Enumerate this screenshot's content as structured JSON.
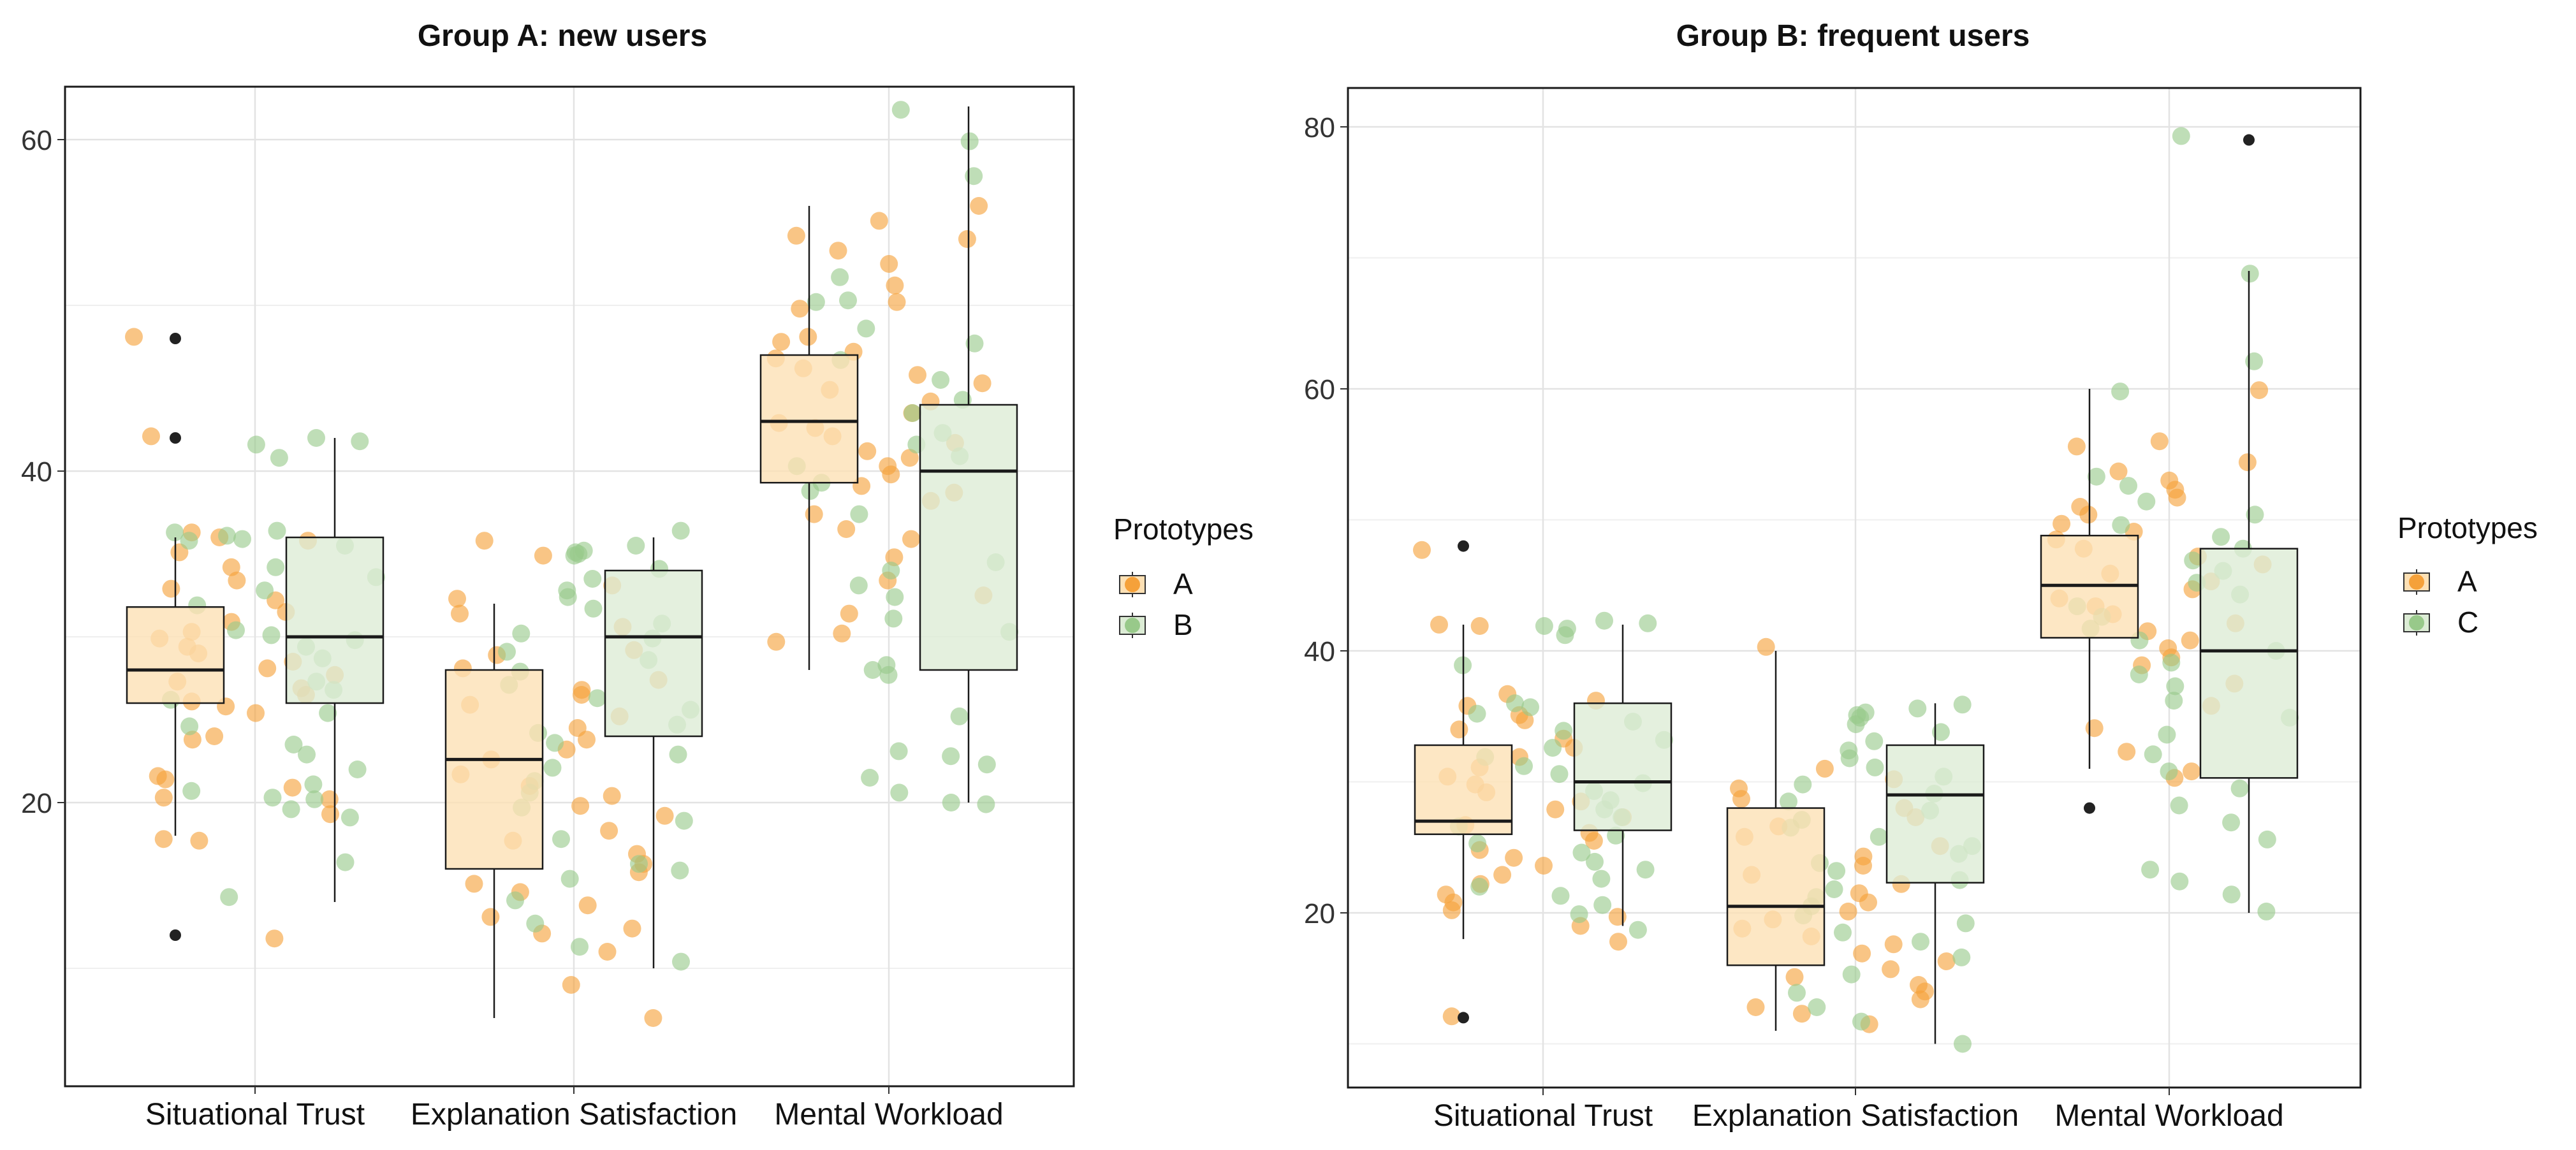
{
  "figure": {
    "panels": [
      {
        "title": "Group A: new users",
        "legend": {
          "title": "Prototypes",
          "items": [
            {
              "label": "A",
              "color": "#f5a13a",
              "fill": "#fde0b4"
            },
            {
              "label": "B",
              "color": "#98c98a",
              "fill": "#dcecd5"
            }
          ]
        }
      },
      {
        "title": "Group B: frequent users",
        "legend": {
          "title": "Prototypes",
          "items": [
            {
              "label": "A",
              "color": "#f5a13a",
              "fill": "#fde0b4"
            },
            {
              "label": "C",
              "color": "#98c98a",
              "fill": "#dcecd5"
            }
          ]
        }
      }
    ]
  },
  "chart_data": [
    {
      "type": "box",
      "title": "Group A: new users",
      "xlabel": "",
      "ylabel": "",
      "categories": [
        "Situational Trust",
        "Explanation Satisfaction",
        "Mental Workload"
      ],
      "ylim": [
        6,
        66
      ],
      "yticks": [
        20,
        40,
        60
      ],
      "grid": true,
      "legend_position": "right",
      "series": [
        {
          "name": "A",
          "boxes": [
            {
              "q1": 26,
              "median": 28,
              "q3": 31.8,
              "whisker_low": 18,
              "whisker_high": 36,
              "outliers": [
                48,
                42,
                12
              ]
            },
            {
              "q1": 16,
              "median": 22.6,
              "q3": 28,
              "whisker_low": 7,
              "whisker_high": 32,
              "outliers": []
            },
            {
              "q1": 39.3,
              "median": 43,
              "q3": 47,
              "whisker_low": 28,
              "whisker_high": 56,
              "outliers": []
            }
          ],
          "points": [
            [
              48.1,
              42.1,
              36.3,
              36.0,
              35.8,
              35.1,
              34.2,
              33.4,
              32.9,
              32.2,
              31.5,
              30.9,
              30.3,
              29.9,
              29.4,
              29.0,
              28.5,
              28.1,
              27.7,
              27.3,
              26.9,
              26.5,
              26.1,
              25.8,
              25.4,
              24.0,
              23.8,
              21.6,
              21.4,
              20.3,
              20.2,
              20.9,
              19.3,
              17.8,
              17.7,
              11.8
            ],
            [
              35.8,
              34.9,
              33.1,
              32.3,
              31.4,
              30.6,
              29.2,
              28.9,
              28.1,
              27.4,
              26.8,
              26.5,
              25.9,
              25.2,
              24.5,
              23.8,
              23.2,
              22.6,
              21.7,
              21.0,
              20.4,
              19.8,
              19.2,
              18.3,
              17.7,
              16.9,
              16.3,
              15.8,
              15.1,
              14.6,
              13.8,
              13.1,
              12.4,
              12.1,
              11.0,
              9.0,
              7.0
            ],
            [
              56.0,
              55.1,
              54.2,
              54.0,
              53.3,
              52.5,
              51.2,
              50.2,
              49.8,
              48.1,
              47.8,
              47.2,
              46.8,
              46.2,
              45.8,
              45.3,
              44.9,
              44.2,
              43.5,
              42.9,
              42.6,
              42.1,
              41.7,
              41.2,
              40.8,
              40.3,
              39.8,
              39.1,
              38.7,
              38.2,
              37.4,
              36.5,
              35.9,
              34.8,
              33.4,
              32.5,
              31.4,
              30.2,
              29.7
            ]
          ]
        },
        {
          "name": "B",
          "boxes": [
            {
              "q1": 26,
              "median": 30,
              "q3": 36,
              "whisker_low": 14,
              "whisker_high": 42,
              "outliers": []
            },
            {
              "q1": 24,
              "median": 30,
              "q3": 34,
              "whisker_low": 10,
              "whisker_high": 36,
              "outliers": []
            },
            {
              "q1": 28,
              "median": 40,
              "q3": 44,
              "whisker_low": 20,
              "whisker_high": 62,
              "outliers": []
            }
          ],
          "points": [
            [
              42.0,
              41.8,
              41.6,
              40.8,
              36.4,
              36.3,
              36.1,
              35.9,
              35.8,
              35.5,
              34.2,
              33.6,
              32.8,
              31.9,
              30.4,
              30.1,
              29.8,
              29.4,
              28.7,
              27.3,
              26.8,
              26.2,
              25.4,
              24.6,
              23.5,
              22.9,
              22.0,
              21.1,
              20.7,
              20.3,
              20.2,
              19.6,
              19.1,
              16.4,
              14.3
            ],
            [
              36.4,
              35.5,
              35.2,
              35.1,
              35.0,
              34.9,
              34.1,
              33.5,
              32.8,
              32.4,
              31.7,
              30.8,
              30.2,
              29.9,
              29.1,
              28.6,
              27.9,
              27.1,
              26.3,
              25.6,
              24.7,
              24.2,
              23.6,
              22.9,
              22.1,
              21.3,
              20.6,
              19.7,
              18.9,
              17.8,
              16.3,
              15.9,
              15.4,
              14.1,
              12.7,
              11.3,
              10.4
            ],
            [
              61.8,
              59.9,
              57.8,
              51.7,
              50.2,
              50.3,
              48.6,
              47.7,
              46.7,
              45.5,
              44.3,
              43.5,
              42.3,
              41.6,
              40.9,
              40.3,
              39.3,
              38.8,
              37.4,
              34.5,
              34.0,
              33.1,
              32.4,
              31.1,
              30.3,
              28.3,
              28.0,
              27.7,
              25.2,
              23.1,
              22.8,
              22.3,
              21.5,
              20.6,
              20.0,
              19.9
            ]
          ]
        }
      ]
    },
    {
      "type": "box",
      "title": "Group B: frequent users",
      "xlabel": "",
      "ylabel": "",
      "categories": [
        "Situational Trust",
        "Explanation Satisfaction",
        "Mental Workload"
      ],
      "ylim": [
        7,
        83
      ],
      "yticks": [
        20,
        40,
        60,
        80
      ],
      "grid": true,
      "legend_position": "right",
      "series": [
        {
          "name": "A",
          "boxes": [
            {
              "q1": 26,
              "median": 27,
              "q3": 32.8,
              "whisker_low": 18,
              "whisker_high": 42,
              "outliers": [
                48,
                12
              ]
            },
            {
              "q1": 16,
              "median": 20.5,
              "q3": 28,
              "whisker_low": 11,
              "whisker_high": 40,
              "outliers": []
            },
            {
              "q1": 41,
              "median": 45,
              "q3": 48.8,
              "whisker_low": 31,
              "whisker_high": 60,
              "outliers": [
                28
              ]
            }
          ],
          "points": [
            [
              47.7,
              42.0,
              41.9,
              36.7,
              36.2,
              35.8,
              35.1,
              34.7,
              34.0,
              33.3,
              32.6,
              31.9,
              31.1,
              30.4,
              29.8,
              29.2,
              28.5,
              27.9,
              27.3,
              26.7,
              26.1,
              25.5,
              24.8,
              24.2,
              23.6,
              22.9,
              22.2,
              21.4,
              20.8,
              20.2,
              19.7,
              19.0,
              17.8,
              12.1
            ],
            [
              40.3,
              31.0,
              30.2,
              29.5,
              28.7,
              28.0,
              27.3,
              26.6,
              25.8,
              25.1,
              24.3,
              23.6,
              22.9,
              22.2,
              21.5,
              20.8,
              20.1,
              19.5,
              18.8,
              18.2,
              17.6,
              16.9,
              16.3,
              15.7,
              15.1,
              14.5,
              14.0,
              13.4,
              12.8,
              12.3,
              11.5
            ],
            [
              59.9,
              56.0,
              55.6,
              54.4,
              53.7,
              53.0,
              52.3,
              51.7,
              51.0,
              50.4,
              49.7,
              49.1,
              48.5,
              47.8,
              47.2,
              46.6,
              45.9,
              45.3,
              44.7,
              44.0,
              43.4,
              42.8,
              42.1,
              41.5,
              40.8,
              40.2,
              39.5,
              38.9,
              37.5,
              35.8,
              34.1,
              32.3,
              30.8,
              30.3
            ]
          ]
        },
        {
          "name": "C",
          "boxes": [
            {
              "q1": 26.3,
              "median": 30,
              "q3": 36,
              "whisker_low": 19,
              "whisker_high": 42,
              "outliers": []
            },
            {
              "q1": 22.3,
              "median": 29,
              "q3": 32.8,
              "whisker_low": 10,
              "whisker_high": 36,
              "outliers": []
            },
            {
              "q1": 30.3,
              "median": 40,
              "q3": 47.8,
              "whisker_low": 20,
              "whisker_high": 69,
              "outliers": [
                79
              ]
            }
          ],
          "points": [
            [
              42.3,
              42.1,
              41.9,
              41.7,
              41.2,
              38.9,
              36.0,
              35.7,
              35.2,
              34.6,
              33.9,
              33.2,
              32.6,
              31.9,
              31.2,
              30.6,
              29.9,
              29.3,
              28.6,
              27.9,
              27.3,
              26.6,
              25.9,
              25.3,
              24.6,
              23.9,
              23.3,
              22.6,
              22.0,
              21.3,
              20.6,
              19.9,
              18.7
            ],
            [
              35.9,
              35.6,
              35.3,
              35.1,
              34.9,
              34.4,
              33.8,
              33.1,
              32.4,
              31.8,
              31.1,
              30.4,
              29.8,
              29.1,
              28.5,
              27.8,
              27.1,
              26.5,
              25.8,
              25.1,
              24.5,
              23.8,
              23.2,
              22.5,
              21.8,
              21.2,
              20.5,
              19.8,
              19.2,
              18.5,
              17.8,
              16.6,
              15.3,
              13.9,
              12.8,
              11.7,
              10.0
            ],
            [
              79.3,
              68.8,
              62.1,
              59.8,
              53.3,
              52.6,
              51.4,
              50.4,
              49.6,
              48.7,
              47.8,
              46.9,
              46.1,
              45.2,
              44.3,
              43.4,
              42.6,
              41.7,
              40.8,
              40.0,
              39.1,
              38.2,
              37.3,
              36.2,
              34.9,
              33.6,
              32.1,
              30.8,
              29.5,
              28.2,
              26.9,
              25.6,
              23.3,
              22.4,
              21.4,
              20.1
            ]
          ]
        }
      ]
    }
  ]
}
